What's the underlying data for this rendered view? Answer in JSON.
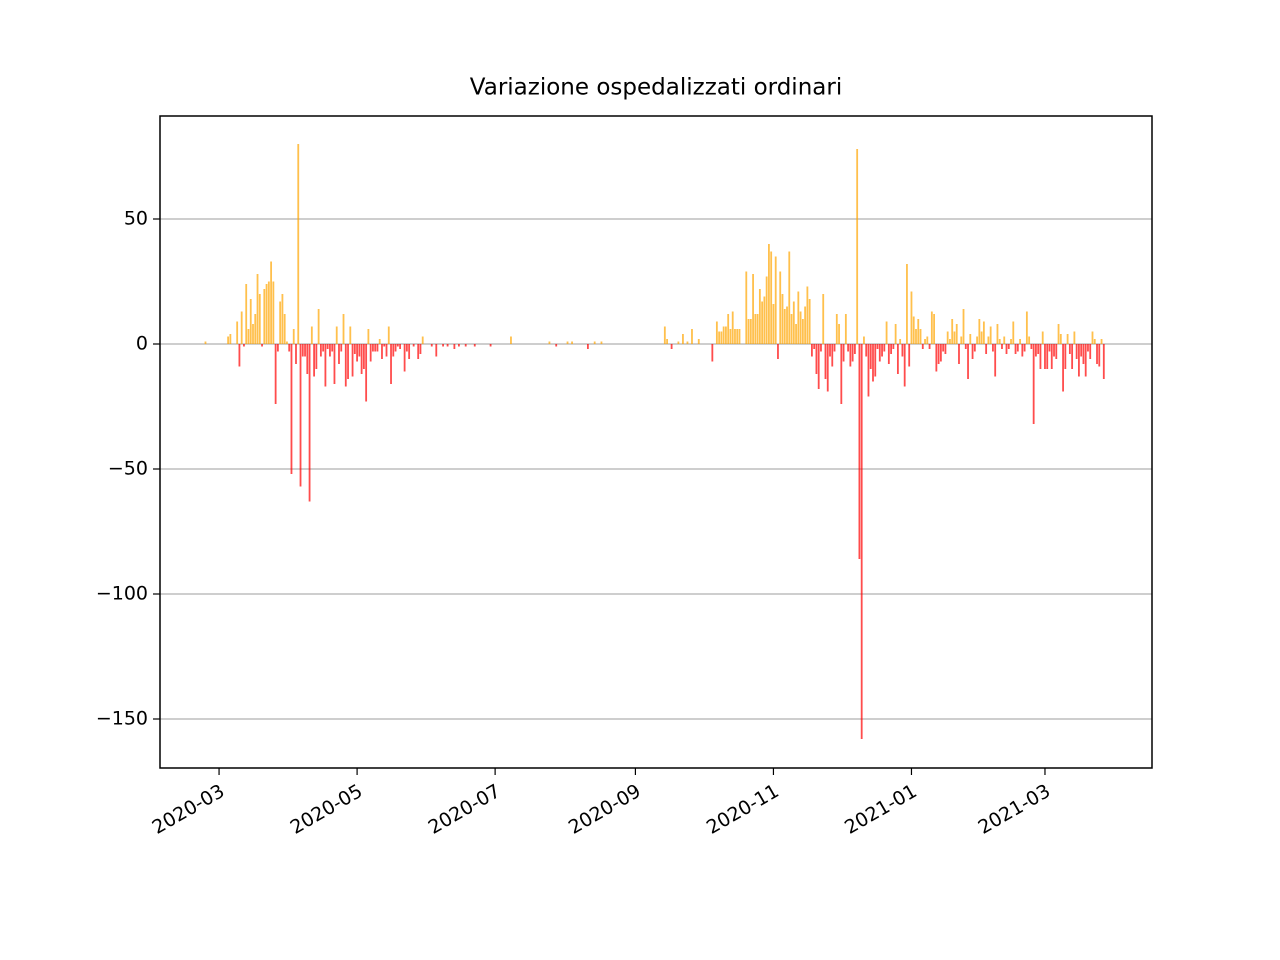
{
  "chart_data": {
    "type": "bar",
    "title": "Variazione ospedalizzati ordinari",
    "x": [
      18316,
      18326,
      18327,
      18330,
      18331,
      18332,
      18333,
      18334,
      18335,
      18336,
      18337,
      18338,
      18339,
      18340,
      18341,
      18342,
      18343,
      18344,
      18345,
      18346,
      18347,
      18348,
      18349,
      18350,
      18351,
      18352,
      18353,
      18354,
      18355,
      18356,
      18357,
      18358,
      18359,
      18360,
      18361,
      18362,
      18363,
      18364,
      18365,
      18366,
      18367,
      18368,
      18369,
      18370,
      18371,
      18372,
      18373,
      18374,
      18375,
      18376,
      18377,
      18378,
      18379,
      18380,
      18381,
      18382,
      18383,
      18384,
      18385,
      18386,
      18387,
      18388,
      18389,
      18390,
      18391,
      18392,
      18393,
      18394,
      18395,
      18396,
      18397,
      18398,
      18399,
      18400,
      18401,
      18402,
      18404,
      18405,
      18406,
      18408,
      18410,
      18411,
      18412,
      18416,
      18418,
      18421,
      18423,
      18426,
      18428,
      18431,
      18435,
      18442,
      18451,
      18468,
      18471,
      18476,
      18478,
      18485,
      18488,
      18491,
      18519,
      18520,
      18522,
      18525,
      18527,
      18529,
      18531,
      18534,
      18540,
      18542,
      18543,
      18544,
      18545,
      18546,
      18547,
      18548,
      18549,
      18550,
      18551,
      18552,
      18555,
      18556,
      18557,
      18558,
      18559,
      18560,
      18561,
      18562,
      18563,
      18564,
      18565,
      18566,
      18567,
      18568,
      18569,
      18570,
      18571,
      18572,
      18573,
      18574,
      18575,
      18576,
      18577,
      18578,
      18579,
      18580,
      18581,
      18582,
      18583,
      18584,
      18585,
      18586,
      18587,
      18588,
      18589,
      18590,
      18591,
      18592,
      18593,
      18594,
      18595,
      18596,
      18597,
      18598,
      18599,
      18600,
      18601,
      18602,
      18603,
      18604,
      18605,
      18606,
      18607,
      18608,
      18609,
      18610,
      18611,
      18612,
      18613,
      18614,
      18615,
      18616,
      18617,
      18618,
      18619,
      18620,
      18621,
      18622,
      18623,
      18624,
      18625,
      18626,
      18627,
      18628,
      18629,
      18630,
      18631,
      18632,
      18633,
      18634,
      18635,
      18636,
      18637,
      18638,
      18639,
      18640,
      18641,
      18642,
      18643,
      18644,
      18645,
      18646,
      18647,
      18648,
      18649,
      18650,
      18651,
      18652,
      18653,
      18654,
      18655,
      18656,
      18657,
      18658,
      18659,
      18660,
      18661,
      18662,
      18663,
      18664,
      18665,
      18666,
      18667,
      18668,
      18669,
      18670,
      18671,
      18672,
      18673,
      18674,
      18675,
      18676,
      18677,
      18678,
      18679,
      18680,
      18681,
      18682,
      18683,
      18684,
      18685,
      18686,
      18687,
      18688,
      18689,
      18690,
      18691,
      18692,
      18693,
      18694,
      18695,
      18696,
      18697,
      18698,
      18699,
      18700,
      18701,
      18702,
      18703,
      18704,
      18705,
      18706,
      18707,
      18708,
      18709,
      18710,
      18711,
      18712,
      18713
    ],
    "values": [
      1,
      3,
      4,
      9,
      -9,
      13,
      -1,
      24,
      6,
      18,
      8,
      12,
      28,
      20,
      -1,
      22,
      24,
      25,
      33,
      25,
      -24,
      -3,
      17,
      20,
      12,
      1,
      -3,
      -52,
      6,
      -8,
      80,
      -57,
      -5,
      -5,
      -12,
      -63,
      7,
      -13,
      -10,
      14,
      -5,
      -3,
      -17,
      -2,
      -5,
      -3,
      -16,
      7,
      -8,
      -3,
      12,
      -17,
      -14,
      7,
      -13,
      -4,
      -7,
      -5,
      -12,
      -10,
      -23,
      6,
      -7,
      -3,
      -3,
      -3,
      2,
      -6,
      -1,
      -5,
      7,
      -16,
      -5,
      -3,
      -1,
      -2,
      -11,
      -3,
      -6,
      -1,
      -6,
      -4,
      3,
      -1,
      -5,
      -1,
      -1,
      -2,
      -1,
      -1,
      -1,
      -1,
      3,
      1,
      -1,
      1,
      1,
      -2,
      1,
      1,
      7,
      2,
      -2,
      1,
      4,
      1,
      6,
      2,
      -7,
      9,
      5,
      5,
      7,
      7,
      12,
      6,
      13,
      6,
      6,
      6,
      29,
      10,
      10,
      28,
      12,
      12,
      22,
      17,
      19,
      27,
      40,
      37,
      16,
      35,
      -6,
      29,
      20,
      14,
      15,
      37,
      12,
      17,
      8,
      21,
      13,
      10,
      15,
      23,
      18,
      -5,
      -2,
      -12,
      -18,
      -3,
      20,
      -14,
      -19,
      -5,
      -9,
      -3,
      12,
      8,
      -24,
      -7,
      12,
      -3,
      -9,
      -7,
      -4,
      78,
      -86,
      -158,
      3,
      -5,
      -21,
      -10,
      -15,
      -13,
      -2,
      -7,
      -5,
      -3,
      9,
      -8,
      -4,
      -2,
      8,
      -12,
      2,
      -5,
      -17,
      32,
      -9,
      21,
      11,
      6,
      10,
      6,
      -2,
      2,
      3,
      -2,
      13,
      12,
      -11,
      -8,
      -7,
      -3,
      -4,
      5,
      2,
      10,
      5,
      8,
      -8,
      3,
      14,
      -2,
      -14,
      4,
      -6,
      -3,
      3,
      10,
      5,
      9,
      -4,
      3,
      7,
      -3,
      -13,
      8,
      2,
      -2,
      3,
      -4,
      -2,
      2,
      9,
      -4,
      -3,
      2,
      -5,
      -3,
      13,
      3,
      -2,
      -32,
      -5,
      -4,
      -10,
      5,
      -10,
      -10,
      -3,
      -10,
      -5,
      -6,
      8,
      4,
      -19,
      -10,
      4,
      -4,
      -10,
      5,
      -6,
      -13,
      -5,
      -8,
      -13,
      -3,
      -6,
      5,
      2,
      -8,
      -9,
      2,
      -14
    ],
    "positive_color": "#ffa500",
    "negative_color": "#ff0000",
    "xlim": [
      18295.9,
      18734.3
    ],
    "xticks": [
      {
        "value": 18322,
        "label": "2020-03"
      },
      {
        "value": 18383,
        "label": "2020-05"
      },
      {
        "value": 18444,
        "label": "2020-07"
      },
      {
        "value": 18506,
        "label": "2020-09"
      },
      {
        "value": 18567,
        "label": "2020-11"
      },
      {
        "value": 18628,
        "label": "2021-01"
      },
      {
        "value": 18687,
        "label": "2021-03"
      }
    ],
    "ylim": [
      -169.6,
      91.2
    ],
    "yticks": [
      {
        "value": -150,
        "label": "−150"
      },
      {
        "value": -100,
        "label": "−100"
      },
      {
        "value": -50,
        "label": "−50"
      },
      0,
      50
    ],
    "grid": "y"
  }
}
